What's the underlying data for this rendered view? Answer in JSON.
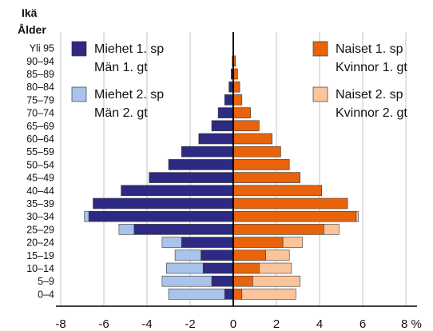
{
  "chart_data": {
    "type": "bar",
    "orientation": "horizontal-population-pyramid",
    "y_axis_title": [
      "Ikä",
      "Ålder"
    ],
    "x_unit": "%",
    "xlim": [
      -8,
      8
    ],
    "x_ticks": [
      -8,
      -6,
      -4,
      -2,
      0,
      2,
      4,
      6,
      8
    ],
    "x_tick_labels": [
      "-8",
      "-6",
      "-4",
      "-2",
      "0",
      "2",
      "4",
      "6",
      "8 %"
    ],
    "grid": "vertical",
    "legend_placement": "top-left and top-right",
    "categories": [
      "Yli 95",
      "90–94",
      "85–89",
      "80–84",
      "75–79",
      "70–74",
      "65–69",
      "60–64",
      "55–59",
      "50–54",
      "45–49",
      "40–44",
      "35–39",
      "30–34",
      "25–29",
      "20–24",
      "15–19",
      "10–14",
      "5–9",
      "0–4"
    ],
    "series": [
      {
        "name": [
          "Miehet 1. sp",
          "Män 1. gt"
        ],
        "side": "left",
        "color": "#2e2a83",
        "values": [
          0,
          0.05,
          0.1,
          0.2,
          0.4,
          0.7,
          1.0,
          1.6,
          2.4,
          3.0,
          3.9,
          5.2,
          6.5,
          6.7,
          4.6,
          2.4,
          1.5,
          1.4,
          1.0,
          0.4
        ]
      },
      {
        "name": [
          "Miehet 2. sp",
          "Män 2. gt"
        ],
        "side": "left",
        "color": "#a9c4ea",
        "values": [
          0,
          0,
          0,
          0,
          0,
          0,
          0,
          0,
          0,
          0,
          0,
          0,
          0,
          0.2,
          0.7,
          0.9,
          1.2,
          1.7,
          2.3,
          2.6
        ]
      },
      {
        "name": [
          "Naiset 1. sp",
          "Kvinnor 1. gt"
        ],
        "side": "right",
        "color": "#e8630a",
        "values": [
          0,
          0.1,
          0.2,
          0.3,
          0.4,
          0.8,
          1.2,
          1.8,
          2.2,
          2.6,
          3.1,
          4.1,
          5.3,
          5.7,
          4.2,
          2.3,
          1.5,
          1.2,
          0.9,
          0.4
        ]
      },
      {
        "name": [
          "Naiset 2. sp",
          "Kvinnor 2. gt"
        ],
        "side": "right",
        "color": "#fbc49a",
        "values": [
          0,
          0,
          0,
          0,
          0,
          0,
          0,
          0,
          0,
          0,
          0,
          0,
          0,
          0.1,
          0.7,
          0.9,
          1.1,
          1.5,
          2.2,
          2.5
        ]
      }
    ]
  }
}
